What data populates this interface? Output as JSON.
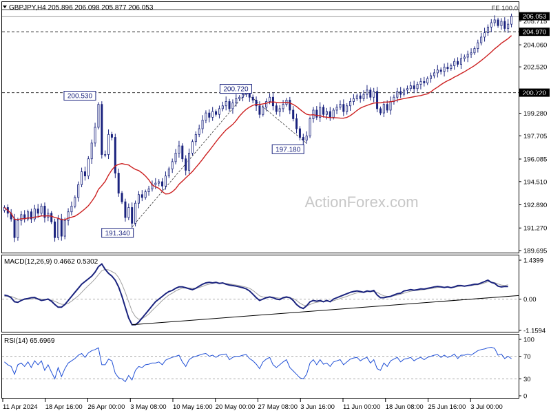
{
  "chart_data": [
    {
      "type": "candlestick",
      "symbol_header": "GBPJPY,H4  205.896 206.098 205.877 206.053",
      "current_price": "206.053",
      "y_ticks": [
        "205.715",
        "204.060",
        "202.520",
        "200.720",
        "199.280",
        "197.705",
        "196.085",
        "194.510",
        "192.890",
        "191.270",
        "189.695"
      ],
      "ylim": [
        189.695,
        206.9
      ],
      "horizontal_lines": [
        {
          "label": "206.053",
          "value": 206.053,
          "style": "solid-thin",
          "color": "#9a9a9a",
          "highlight": false
        },
        {
          "label": "204.970",
          "value": 204.97,
          "style": "dashed",
          "color": "#333333",
          "highlight": true
        },
        {
          "label": "200.720",
          "value": 200.72,
          "style": "dashed",
          "color": "#333333",
          "highlight": true
        }
      ],
      "fe_line": {
        "label": "FE 100.0",
        "value": 206.52
      },
      "annotations": [
        {
          "text": "200.530",
          "price": 200.53,
          "date_index": 28
        },
        {
          "text": "191.340",
          "price": 191.34,
          "date_index": 38
        },
        {
          "text": "200.720",
          "price": 200.72,
          "date_index": 72
        },
        {
          "text": "197.180",
          "price": 197.18,
          "date_index": 90
        }
      ],
      "watermark": "ActionForex.com",
      "moving_average": {
        "color": "#cc1f1f"
      },
      "candle_color": "#1a237e",
      "closes": [
        192.7,
        192.3,
        191.9,
        190.6,
        191.8,
        192.2,
        191.9,
        192.4,
        191.9,
        192.6,
        192.3,
        192.8,
        192.0,
        192.3,
        191.7,
        190.6,
        191.9,
        190.7,
        191.8,
        192.4,
        192.8,
        193.4,
        194.3,
        195.2,
        194.9,
        196.1,
        197.2,
        198.3,
        199.9,
        196.4,
        196.4,
        197.8,
        197.6,
        195.1,
        193.7,
        193.1,
        192.0,
        192.7,
        191.6,
        193.0,
        193.6,
        193.4,
        193.8,
        194.0,
        194.3,
        194.4,
        194.5,
        194.2,
        194.9,
        195.4,
        195.9,
        196.5,
        197.0,
        196.1,
        195.3,
        196.5,
        197.3,
        197.8,
        198.2,
        198.8,
        199.3,
        199.0,
        199.4,
        199.2,
        199.6,
        199.8,
        200.1,
        199.6,
        200.0,
        200.3,
        200.4,
        200.6,
        200.7,
        200.4,
        200.2,
        199.8,
        199.2,
        199.7,
        200.1,
        200.4,
        199.8,
        199.4,
        199.6,
        199.9,
        200.2,
        199.5,
        198.9,
        198.2,
        197.6,
        197.4,
        197.7,
        198.9,
        199.5,
        199.0,
        199.7,
        199.2,
        199.4,
        199.0,
        199.5,
        199.7,
        199.9,
        199.4,
        199.8,
        200.1,
        200.3,
        200.5,
        200.3,
        200.6,
        200.9,
        200.4,
        200.8,
        199.6,
        199.3,
        199.9,
        199.5,
        200.1,
        200.4,
        200.8,
        200.6,
        200.9,
        201.0,
        201.2,
        201.0,
        201.3,
        201.5,
        201.4,
        201.7,
        201.9,
        202.1,
        202.3,
        202.2,
        202.5,
        202.4,
        202.6,
        202.9,
        202.7,
        203.1,
        203.2,
        203.4,
        203.5,
        203.8,
        204.2,
        204.6,
        204.9,
        205.3,
        205.6,
        205.8,
        205.4,
        205.7,
        205.2,
        205.5,
        206.053
      ],
      "macd": {
        "label": "MACD(12,26,9) 0.4662 0.5302",
        "y_ticks": [
          "1.4399",
          "0.00",
          "-1.1594"
        ],
        "ylim": [
          -1.1594,
          1.4399
        ],
        "zero_line": true,
        "line_color": "#1a237e",
        "signal_color": "#a0a0a0",
        "trendline_color": "#000000",
        "values": [
          0.15,
          0.12,
          0.05,
          -0.1,
          -0.12,
          -0.05,
          0.0,
          0.02,
          0.05,
          0.06,
          0.0,
          -0.05,
          -0.03,
          0.0,
          -0.08,
          -0.2,
          -0.3,
          -0.3,
          -0.2,
          -0.05,
          0.1,
          0.25,
          0.4,
          0.55,
          0.65,
          0.75,
          0.85,
          1.0,
          1.2,
          1.3,
          1.1,
          0.95,
          0.85,
          0.7,
          0.45,
          0.1,
          -0.3,
          -0.7,
          -0.95,
          -0.95,
          -0.85,
          -0.7,
          -0.55,
          -0.4,
          -0.25,
          -0.1,
          0.0,
          0.1,
          0.2,
          0.28,
          0.32,
          0.4,
          0.45,
          0.45,
          0.42,
          0.38,
          0.35,
          0.4,
          0.48,
          0.55,
          0.6,
          0.62,
          0.6,
          0.62,
          0.58,
          0.6,
          0.55,
          0.52,
          0.5,
          0.48,
          0.45,
          0.42,
          0.38,
          0.3,
          0.18,
          0.05,
          -0.05,
          0.0,
          0.05,
          0.08,
          0.05,
          0.0,
          -0.02,
          0.05,
          0.08,
          0.05,
          -0.05,
          -0.2,
          -0.3,
          -0.35,
          -0.25,
          -0.1,
          -0.05,
          -0.08,
          -0.05,
          -0.1,
          -0.05,
          -0.1,
          0.0,
          0.05,
          0.1,
          0.15,
          0.2,
          0.25,
          0.28,
          0.3,
          0.28,
          0.25,
          0.3,
          0.28,
          0.32,
          0.15,
          0.05,
          0.05,
          0.08,
          0.1,
          0.15,
          0.2,
          0.22,
          0.3,
          0.32,
          0.35,
          0.33,
          0.35,
          0.38,
          0.37,
          0.4,
          0.42,
          0.45,
          0.47,
          0.45,
          0.43,
          0.45,
          0.42,
          0.45,
          0.5,
          0.5,
          0.48,
          0.5,
          0.52,
          0.55,
          0.55,
          0.6,
          0.65,
          0.7,
          0.62,
          0.58,
          0.48,
          0.45,
          0.47,
          0.4662
        ],
        "signal": [
          0.1,
          0.11,
          0.1,
          0.05,
          0.0,
          -0.02,
          -0.02,
          -0.01,
          0.0,
          0.02,
          0.02,
          0.0,
          -0.02,
          -0.02,
          -0.04,
          -0.08,
          -0.14,
          -0.19,
          -0.2,
          -0.16,
          -0.08,
          0.02,
          0.12,
          0.25,
          0.38,
          0.5,
          0.62,
          0.75,
          0.9,
          1.05,
          1.1,
          1.08,
          1.02,
          0.95,
          0.8,
          0.55,
          0.25,
          -0.1,
          -0.45,
          -0.65,
          -0.75,
          -0.72,
          -0.65,
          -0.55,
          -0.42,
          -0.3,
          -0.18,
          -0.05,
          0.05,
          0.15,
          0.22,
          0.3,
          0.36,
          0.4,
          0.42,
          0.41,
          0.4,
          0.4,
          0.43,
          0.47,
          0.52,
          0.55,
          0.58,
          0.6,
          0.6,
          0.6,
          0.58,
          0.56,
          0.54,
          0.52,
          0.5,
          0.47,
          0.44,
          0.4,
          0.32,
          0.22,
          0.12,
          0.08,
          0.07,
          0.07,
          0.07,
          0.05,
          0.03,
          0.03,
          0.05,
          0.05,
          0.02,
          -0.05,
          -0.15,
          -0.22,
          -0.25,
          -0.2,
          -0.15,
          -0.12,
          -0.1,
          -0.1,
          -0.08,
          -0.09,
          -0.06,
          -0.02,
          0.02,
          0.06,
          0.1,
          0.15,
          0.19,
          0.23,
          0.25,
          0.25,
          0.27,
          0.27,
          0.28,
          0.25,
          0.18,
          0.12,
          0.1,
          0.1,
          0.12,
          0.15,
          0.18,
          0.22,
          0.26,
          0.29,
          0.31,
          0.32,
          0.34,
          0.35,
          0.37,
          0.39,
          0.41,
          0.43,
          0.44,
          0.44,
          0.44,
          0.43,
          0.44,
          0.46,
          0.48,
          0.48,
          0.49,
          0.5,
          0.52,
          0.53,
          0.56,
          0.6,
          0.64,
          0.63,
          0.61,
          0.56,
          0.52,
          0.5,
          0.5302
        ]
      },
      "rsi": {
        "label": "RSI(14) 65.6969",
        "y_ticks": [
          "100",
          "70",
          "30",
          "0"
        ],
        "ylim": [
          0,
          100
        ],
        "levels": [
          70,
          30
        ],
        "line_color": "#1f4fd6",
        "values": [
          60,
          55,
          52,
          38,
          55,
          58,
          52,
          60,
          50,
          62,
          55,
          62,
          45,
          55,
          42,
          30,
          50,
          34,
          48,
          58,
          62,
          66,
          72,
          75,
          68,
          76,
          80,
          82,
          85,
          55,
          55,
          65,
          62,
          40,
          32,
          30,
          25,
          36,
          28,
          45,
          52,
          50,
          55,
          56,
          58,
          58,
          60,
          55,
          63,
          66,
          68,
          70,
          72,
          60,
          52,
          64,
          68,
          70,
          72,
          74,
          75,
          70,
          72,
          68,
          72,
          73,
          74,
          64,
          68,
          70,
          70,
          72,
          73,
          66,
          62,
          56,
          48,
          60,
          65,
          68,
          55,
          50,
          55,
          60,
          64,
          50,
          44,
          38,
          32,
          30,
          38,
          58,
          64,
          55,
          64,
          56,
          58,
          52,
          60,
          62,
          64,
          55,
          60,
          65,
          67,
          68,
          62,
          66,
          68,
          58,
          64,
          48,
          45,
          58,
          52,
          62,
          65,
          68,
          60,
          65,
          66,
          68,
          62,
          66,
          68,
          64,
          68,
          70,
          72,
          73,
          68,
          72,
          68,
          70,
          74,
          66,
          72,
          72,
          74,
          72,
          76,
          80,
          82,
          83,
          85,
          86,
          84,
          72,
          74,
          66,
          70,
          65.6969
        ]
      },
      "x_ticks": [
        "11 Apr 2024",
        "18 Apr 16:00",
        "26 Apr 00:00",
        "3 May 08:00",
        "10 May 16:00",
        "20 May 00:00",
        "27 May 08:00",
        "3 Jun 16:00",
        "11 Jun 00:00",
        "18 Jun 08:00",
        "25 Jun 16:00",
        "3 Jul 00:00"
      ]
    }
  ]
}
